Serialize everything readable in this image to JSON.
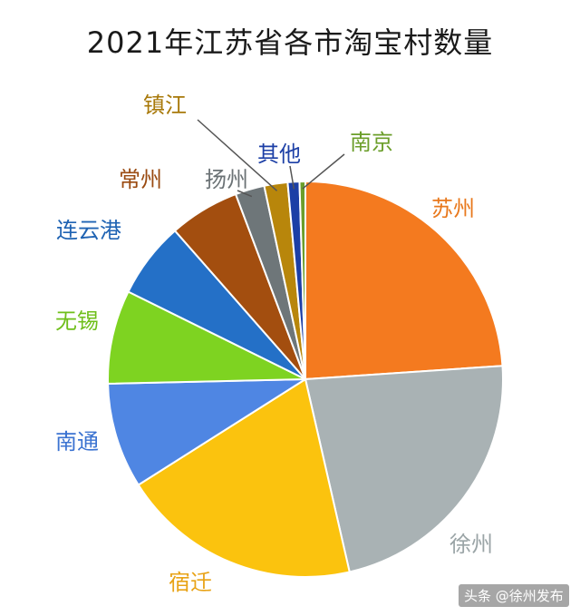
{
  "chart_data": {
    "type": "pie",
    "title": "2021年江苏省各市淘宝村数量",
    "slices": [
      {
        "label": "苏州",
        "value": 25,
        "color": "#f47a1f",
        "label_color": "#e8781c"
      },
      {
        "label": "徐州",
        "value": 23.5,
        "color": "#a9b2b4",
        "label_color": "#9aa4a6"
      },
      {
        "label": "宿迁",
        "value": 20.5,
        "color": "#fbc30e",
        "label_color": "#e8a317"
      },
      {
        "label": "南通",
        "value": 9,
        "color": "#4f86e3",
        "label_color": "#3b73d1"
      },
      {
        "label": "无锡",
        "value": 8,
        "color": "#7ed321",
        "label_color": "#6fbf1a"
      },
      {
        "label": "连云港",
        "value": 6.5,
        "color": "#2470c7",
        "label_color": "#1f63b3"
      },
      {
        "label": "常州",
        "value": 6,
        "color": "#a34e0f",
        "label_color": "#9a4a10"
      },
      {
        "label": "扬州",
        "value": 2.5,
        "color": "#6e7679",
        "label_color": "#6b7275"
      },
      {
        "label": "镇江",
        "value": 2,
        "color": "#b8860b",
        "label_color": "#a8790a"
      },
      {
        "label": "其他",
        "value": 1,
        "color": "#1c3fa6",
        "label_color": "#1c3fa6"
      },
      {
        "label": "南京",
        "value": 0.5,
        "color": "#6b9e2a",
        "label_color": "#6b9e2a"
      }
    ]
  },
  "watermark": {
    "text": "头条 @徐州发布"
  }
}
